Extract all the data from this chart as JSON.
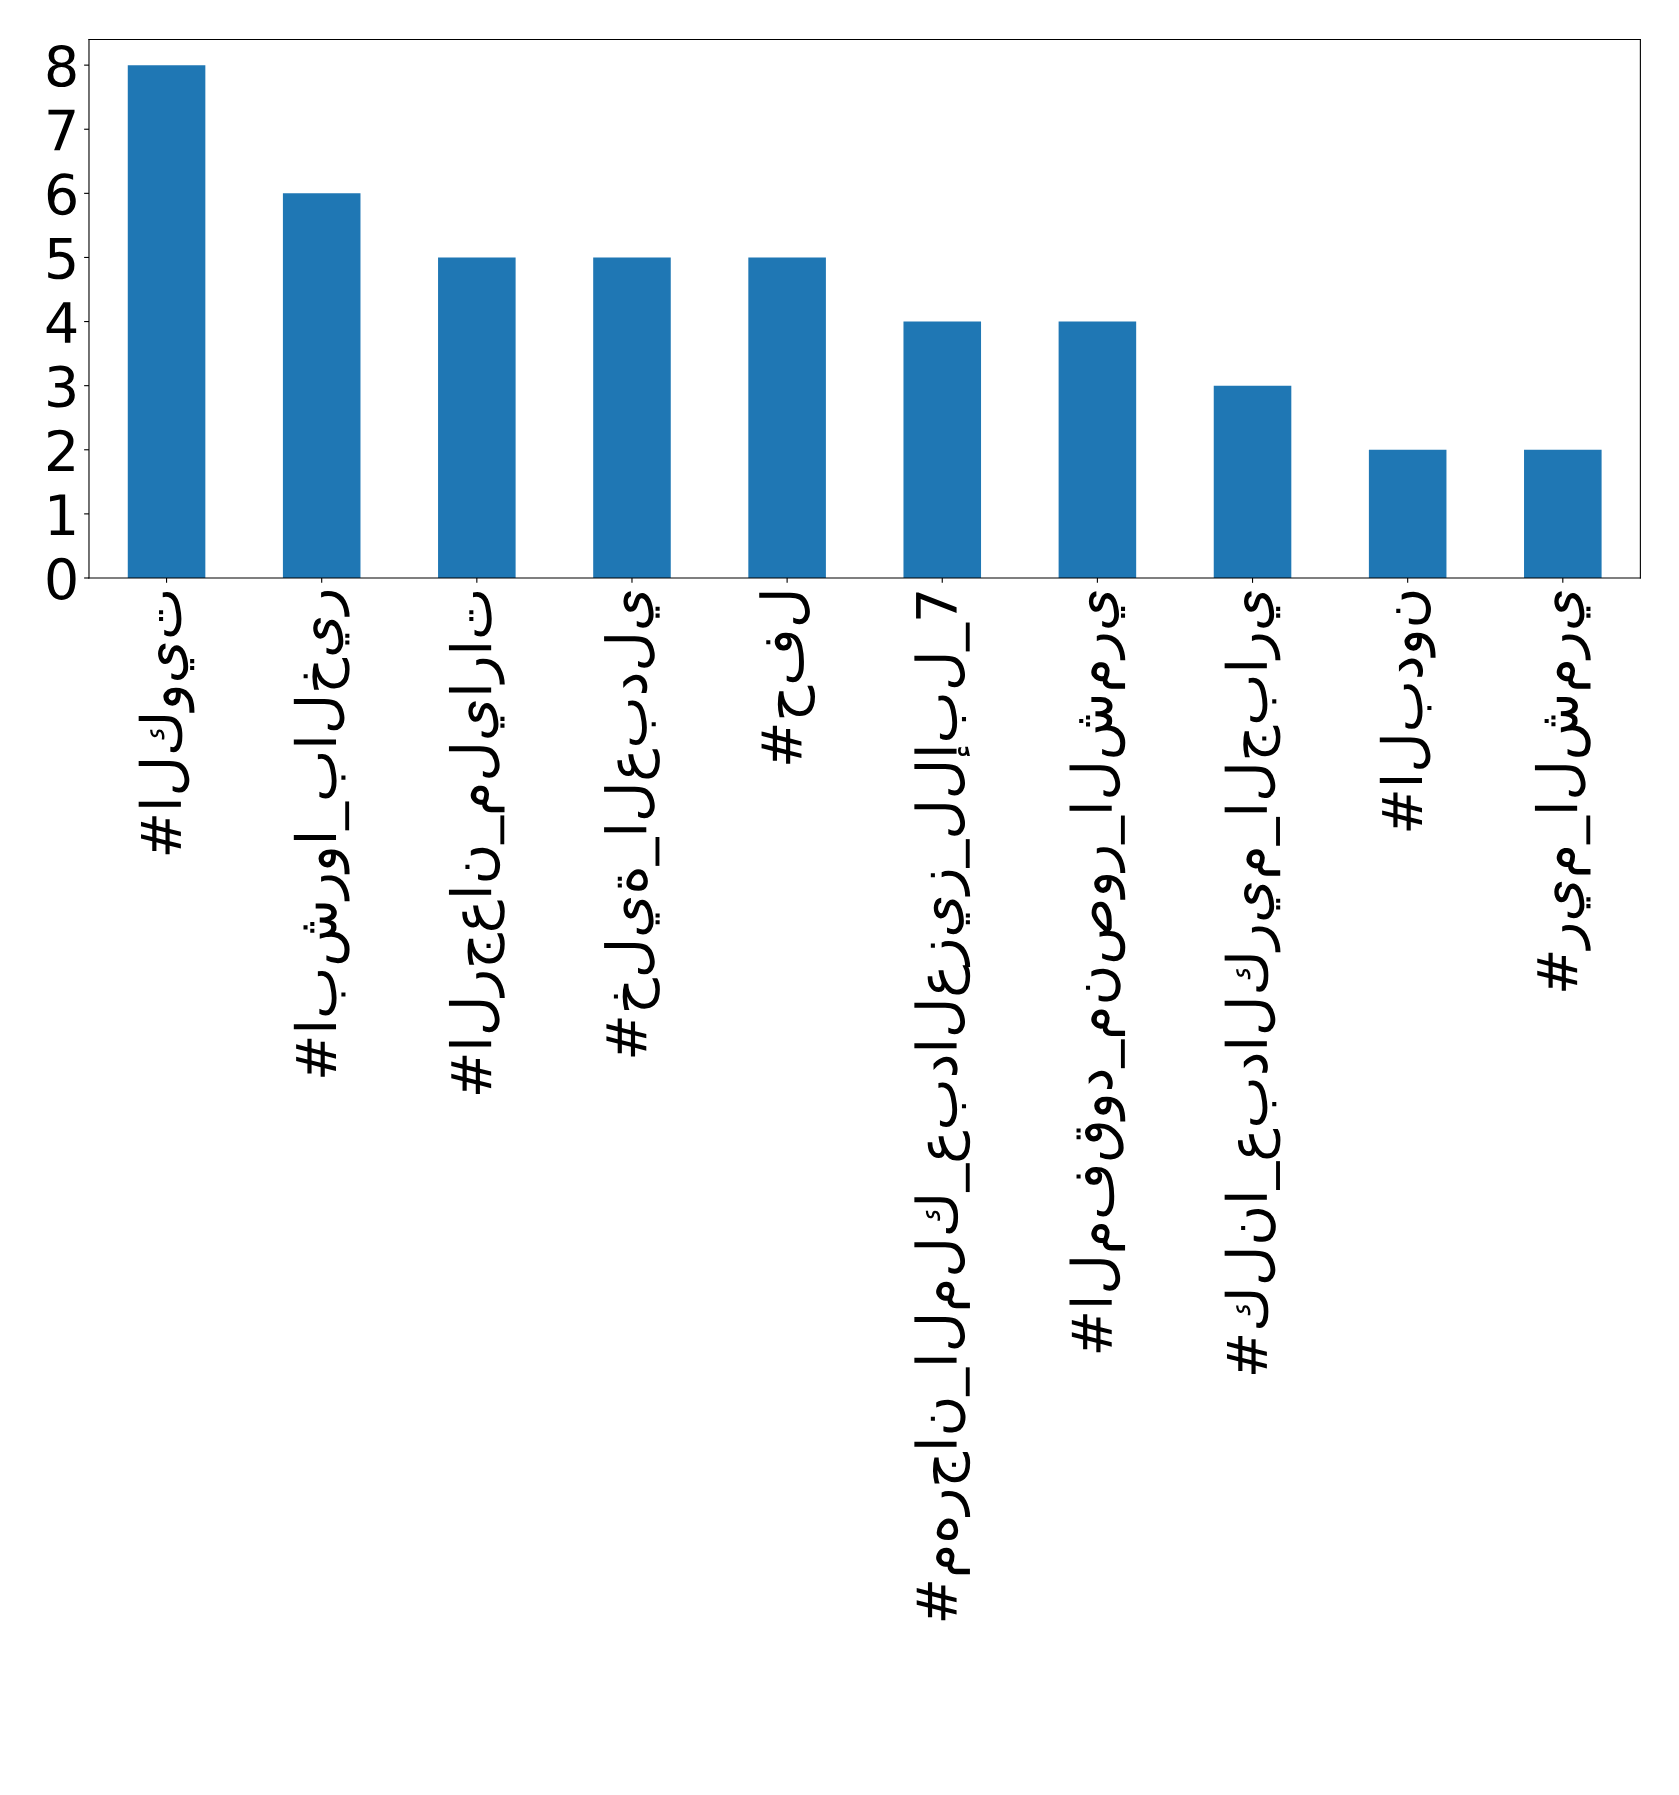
{
  "chart_data": {
    "type": "bar",
    "categories": [
      "#الكويت",
      "#ابشروا_بالخير",
      "#الرجعان_مليارات",
      "#خلية_العبدلي",
      "#حفل",
      "#مهرجان_الملك_عبدالعزيز_للإبل_7",
      "#المفقود_منصور_الشمري",
      "#كلنا_عبدالكريم_الجباري",
      "#البدون",
      "#ريم_الشمري"
    ],
    "values": [
      8,
      6,
      5,
      5,
      5,
      4,
      4,
      3,
      2,
      2
    ],
    "color": "#1f77b4",
    "ylim": [
      0,
      8.4
    ],
    "yticks": [
      0,
      1,
      2,
      3,
      4,
      5,
      6,
      7,
      8
    ],
    "grid": false
  }
}
